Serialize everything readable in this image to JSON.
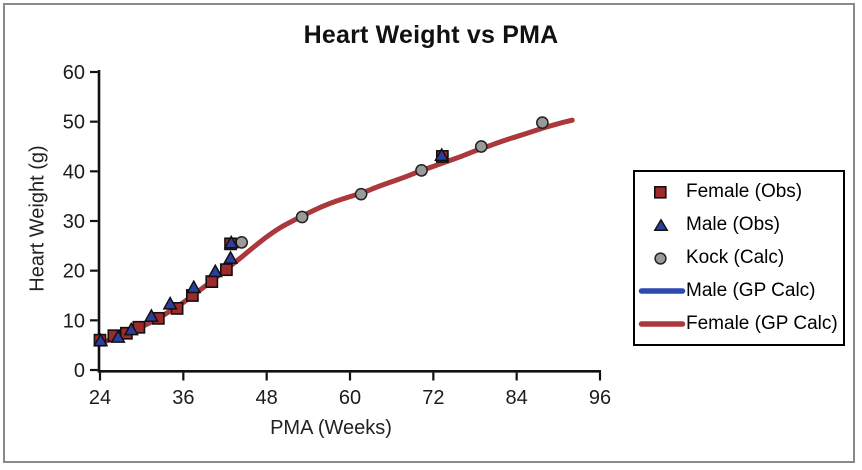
{
  "chart_data": {
    "type": "scatter",
    "title": "Heart Weight vs PMA",
    "xlabel": "PMA (Weeks)",
    "ylabel": "Heart Weight (g)",
    "xlim": [
      24,
      96
    ],
    "ylim": [
      0,
      60
    ],
    "x_ticks": [
      24,
      36,
      48,
      60,
      72,
      84,
      96
    ],
    "y_ticks": [
      0,
      10,
      20,
      30,
      40,
      50,
      60
    ],
    "grid": false,
    "legend_position": "right-outside",
    "series": [
      {
        "name": "Female (Obs)",
        "kind": "scatter",
        "marker": "square",
        "color": "#9f2a2c",
        "points": [
          [
            24,
            6.0
          ],
          [
            26,
            6.9
          ],
          [
            27.8,
            7.4
          ],
          [
            29.6,
            8.6
          ],
          [
            32.4,
            10.4
          ],
          [
            35.1,
            12.4
          ],
          [
            37.3,
            15.0
          ],
          [
            40.1,
            17.8
          ],
          [
            42.2,
            20.2
          ],
          [
            42.8,
            25.4
          ],
          [
            73.3,
            43.0
          ]
        ]
      },
      {
        "name": "Male (Obs)",
        "kind": "scatter",
        "marker": "triangle",
        "color": "#2b3f9e",
        "points": [
          [
            24.1,
            5.9
          ],
          [
            26.6,
            6.6
          ],
          [
            28.5,
            8.1
          ],
          [
            31.4,
            10.8
          ],
          [
            34.1,
            13.3
          ],
          [
            37.5,
            16.6
          ],
          [
            40.6,
            19.8
          ],
          [
            42.8,
            22.5
          ],
          [
            42.9,
            25.6
          ],
          [
            73.2,
            43.2
          ]
        ]
      },
      {
        "name": "Kock (Calc)",
        "kind": "scatter",
        "marker": "circle",
        "color": "#9a9a9a",
        "points": [
          [
            44.4,
            25.7
          ],
          [
            53.1,
            30.8
          ],
          [
            61.6,
            35.4
          ],
          [
            70.3,
            40.2
          ],
          [
            78.9,
            45.0
          ],
          [
            87.7,
            49.8
          ]
        ]
      },
      {
        "name": "Male (GP Calc)",
        "kind": "line",
        "color": "#2b49ae",
        "points": [
          [
            24,
            5.5
          ],
          [
            26,
            6.3
          ],
          [
            28,
            7.4
          ],
          [
            30,
            8.7
          ],
          [
            32,
            10.1
          ],
          [
            34,
            11.8
          ],
          [
            36,
            13.6
          ],
          [
            38,
            15.7
          ],
          [
            40,
            17.8
          ],
          [
            42,
            20.1
          ],
          [
            44,
            22.3
          ],
          [
            46,
            24.6
          ],
          [
            48,
            26.8
          ],
          [
            50,
            28.7
          ],
          [
            52,
            30.2
          ],
          [
            54,
            31.6
          ],
          [
            56,
            32.9
          ],
          [
            58,
            34.0
          ],
          [
            60,
            34.9
          ],
          [
            62,
            35.8
          ],
          [
            64,
            36.9
          ],
          [
            66,
            37.9
          ],
          [
            68,
            38.9
          ],
          [
            70,
            40.0
          ],
          [
            72,
            41.0
          ],
          [
            74,
            42.0
          ],
          [
            76,
            43.0
          ],
          [
            78,
            44.1
          ],
          [
            80,
            45.1
          ],
          [
            82,
            46.1
          ],
          [
            84,
            47.0
          ],
          [
            86,
            47.9
          ],
          [
            88,
            48.8
          ],
          [
            90,
            49.6
          ],
          [
            92,
            50.3
          ]
        ]
      },
      {
        "name": "Female (GP Calc)",
        "kind": "line",
        "color": "#ab393c",
        "points": [
          [
            24,
            5.5
          ],
          [
            26,
            6.3
          ],
          [
            28,
            7.4
          ],
          [
            30,
            8.7
          ],
          [
            32,
            10.1
          ],
          [
            34,
            11.8
          ],
          [
            36,
            13.6
          ],
          [
            38,
            15.7
          ],
          [
            40,
            17.8
          ],
          [
            42,
            20.1
          ],
          [
            44,
            22.3
          ],
          [
            46,
            24.6
          ],
          [
            48,
            26.8
          ],
          [
            50,
            28.7
          ],
          [
            52,
            30.2
          ],
          [
            54,
            31.6
          ],
          [
            56,
            32.9
          ],
          [
            58,
            34.0
          ],
          [
            60,
            34.9
          ],
          [
            62,
            35.8
          ],
          [
            64,
            36.9
          ],
          [
            66,
            37.9
          ],
          [
            68,
            38.9
          ],
          [
            70,
            40.0
          ],
          [
            72,
            41.0
          ],
          [
            74,
            42.0
          ],
          [
            76,
            43.0
          ],
          [
            78,
            44.1
          ],
          [
            80,
            45.1
          ],
          [
            82,
            46.1
          ],
          [
            84,
            47.0
          ],
          [
            86,
            47.9
          ],
          [
            88,
            48.8
          ],
          [
            90,
            49.6
          ],
          [
            92,
            50.3
          ]
        ]
      }
    ]
  }
}
